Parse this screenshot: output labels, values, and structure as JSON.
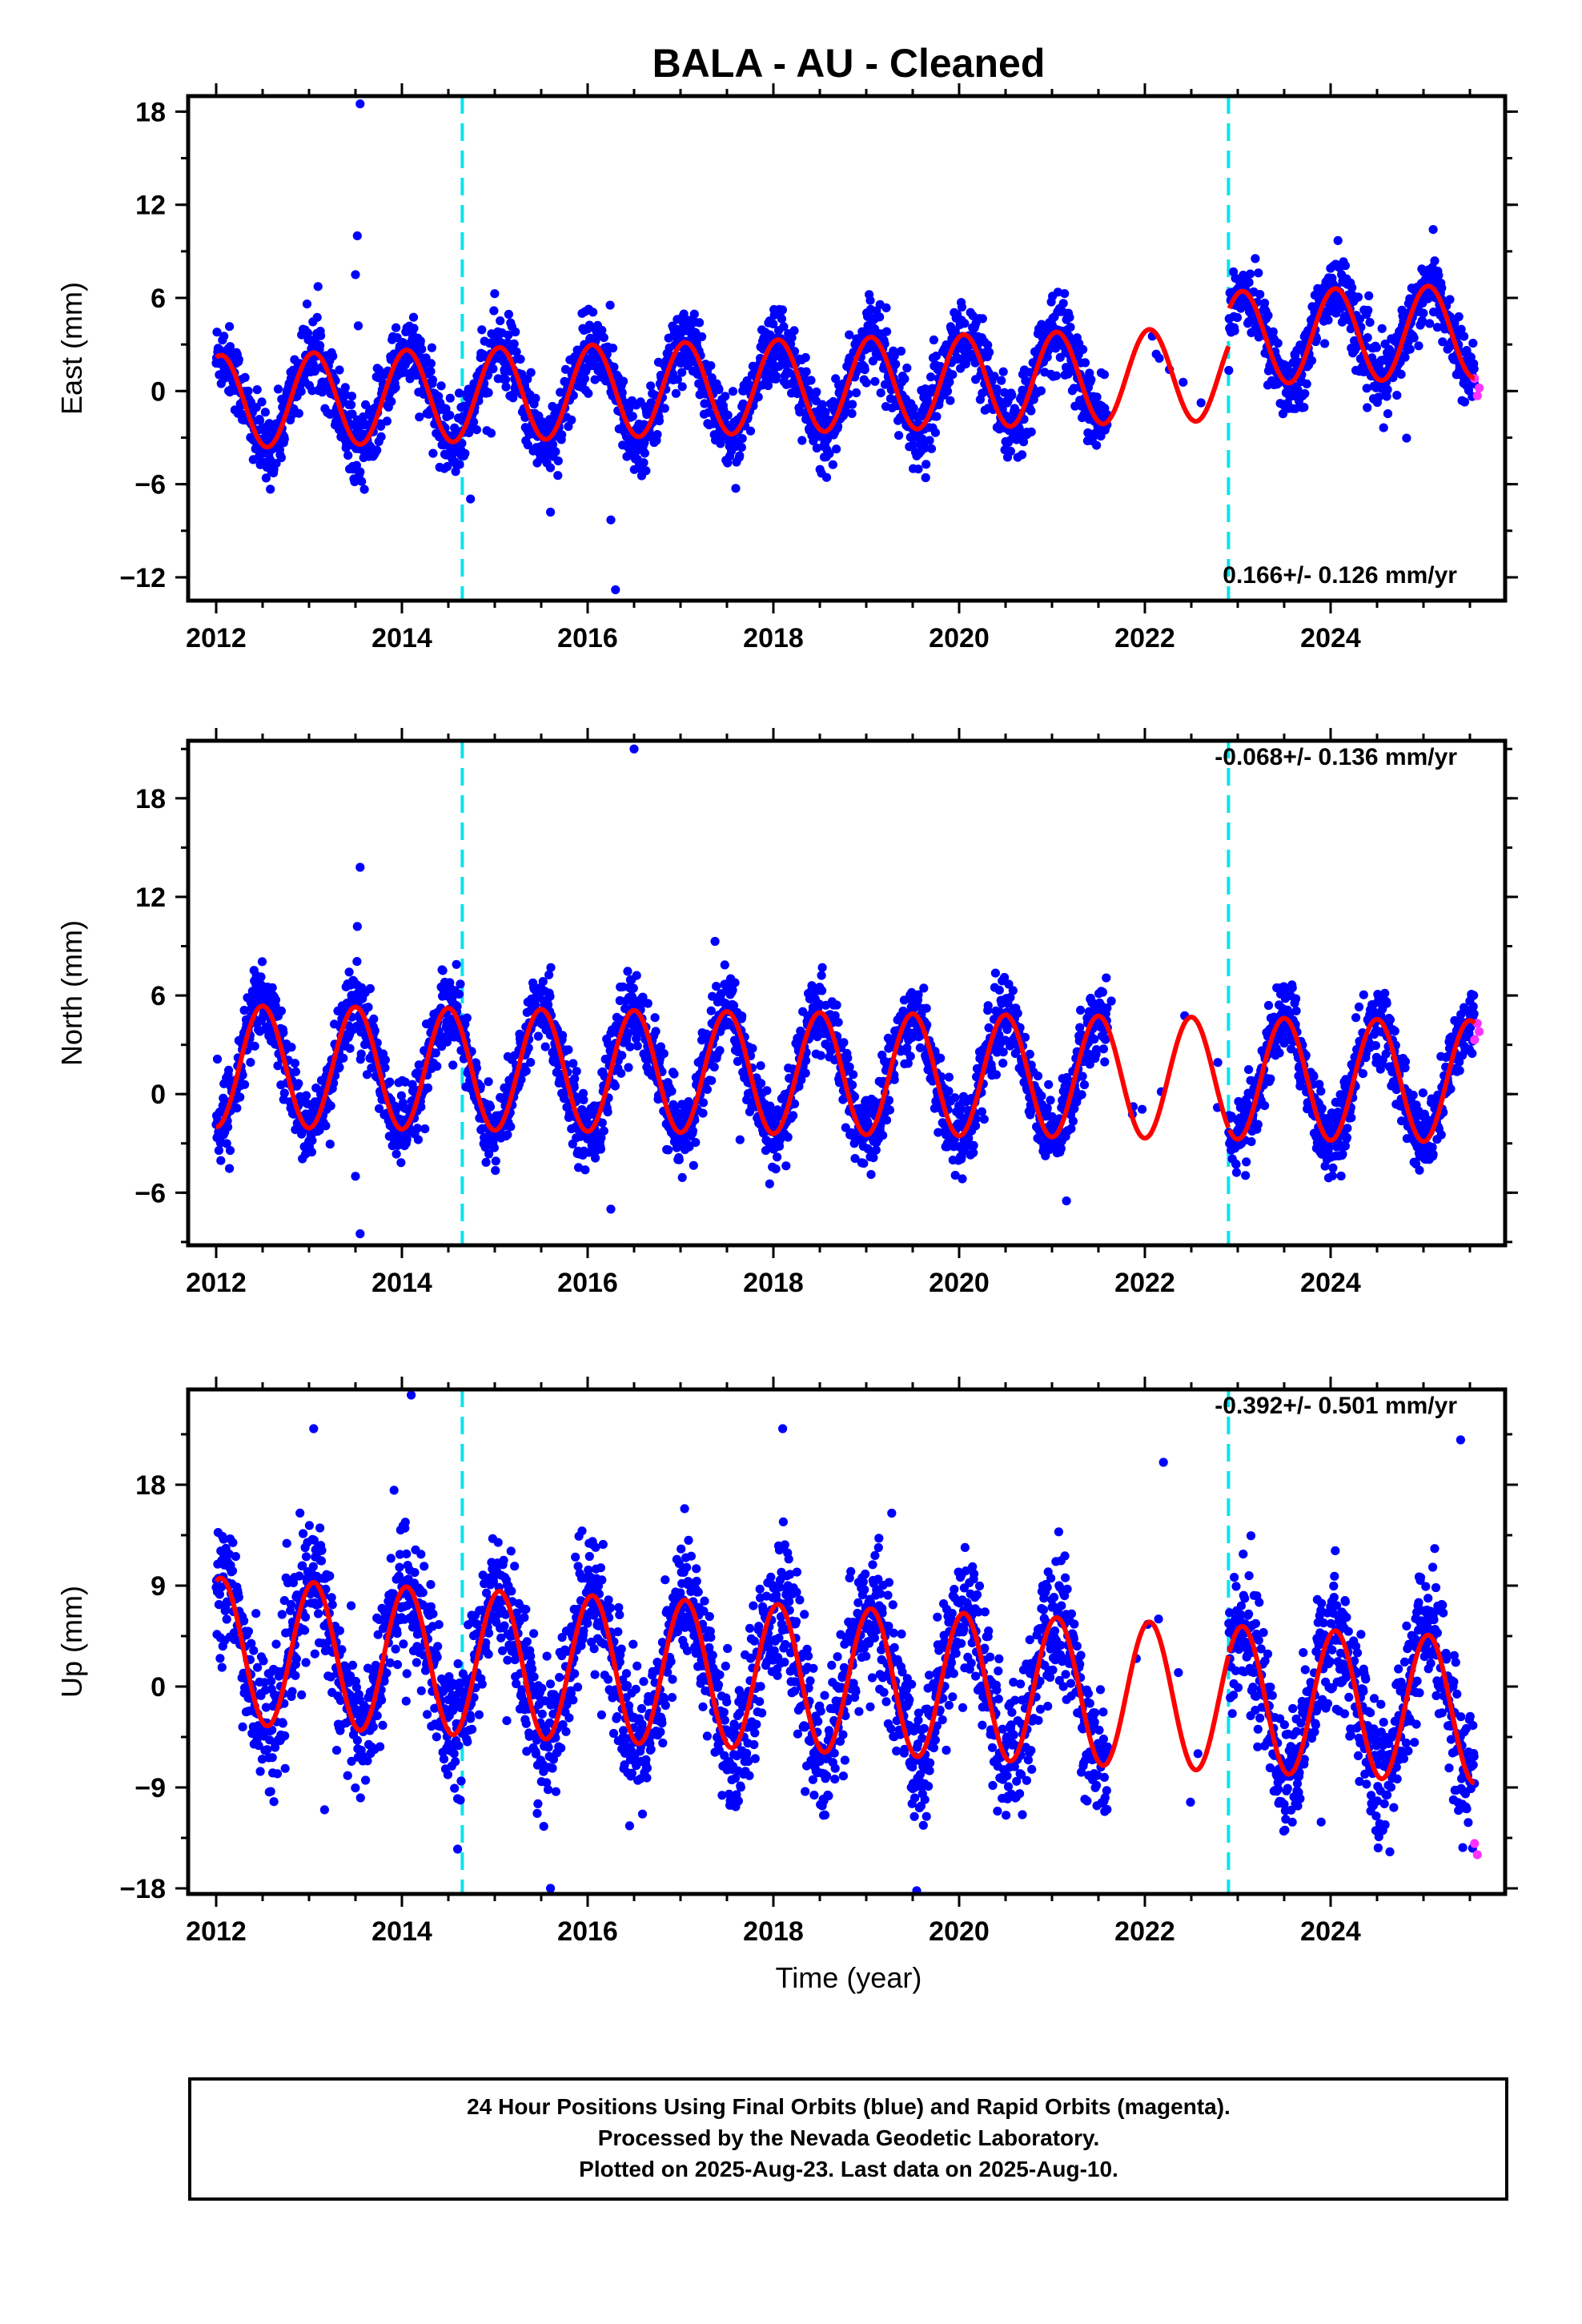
{
  "title": "BALA  - AU - Cleaned",
  "footer": {
    "line1": "24 Hour Positions Using Final Orbits (blue) and Rapid Orbits (magenta).",
    "line2": "Processed by the Nevada Geodetic Laboratory.",
    "line3": "Plotted on 2025-Aug-23. Last data on 2025-Aug-10."
  },
  "colors": {
    "final_points": "#0000ff",
    "rapid_points": "#ff33ff",
    "model": "#ff0000",
    "breaks": "#00e5ee"
  },
  "chart_data": [
    {
      "type": "scatter",
      "ylabel": "East (mm)",
      "xlabel": "",
      "rate": "0.166+/- 0.126 mm/yr",
      "xlim": [
        2011.75,
        2025.82
      ],
      "ylim": [
        -13.5,
        19
      ],
      "yticks": [
        -12,
        -6,
        0,
        6,
        12,
        18
      ],
      "xticks": [
        2012,
        2014,
        2016,
        2018,
        2020,
        2022,
        2024
      ],
      "equipment_breaks": [
        2014.65,
        2022.9
      ],
      "gap": [
        2021.6,
        2022.9
      ],
      "model": {
        "offset": -0.7,
        "trend": 0.166,
        "step_at_2022_9": 2.3,
        "annual_amp": 3.0,
        "annual_peak": 2012.05
      },
      "rapid_points_tail": {
        "x": [
          2025.55,
          2025.58,
          2025.6
        ],
        "y": [
          0.8,
          -0.3,
          0.2
        ]
      },
      "outliers": {
        "x": [
          2013.55,
          2013.52,
          2013.5,
          2013.53,
          2016.25,
          2016.3,
          2015.6
        ],
        "y": [
          18.5,
          10.0,
          7.5,
          4.2,
          -8.3,
          -12.8,
          -7.8
        ]
      }
    },
    {
      "type": "scatter",
      "ylabel": "North (mm)",
      "xlabel": "",
      "rate": "-0.068+/- 0.136 mm/yr",
      "xlim": [
        2011.75,
        2025.82
      ],
      "ylim": [
        -9.2,
        21.5
      ],
      "yticks": [
        -6,
        0,
        6,
        12,
        18
      ],
      "xticks": [
        2012,
        2014,
        2016,
        2018,
        2020,
        2022,
        2024
      ],
      "equipment_breaks": [
        2014.65,
        2022.9
      ],
      "gap": [
        2021.6,
        2022.9
      ],
      "model": {
        "offset": 1.7,
        "trend": -0.068,
        "step_at_2022_9": 0.0,
        "annual_amp": 3.7,
        "annual_peak": 2012.5
      },
      "rapid_points_tail": {
        "x": [
          2025.55,
          2025.58,
          2025.6
        ],
        "y": [
          3.3,
          4.3,
          3.8
        ]
      },
      "outliers": {
        "x": [
          2016.5,
          2013.55,
          2013.52,
          2013.5,
          2016.25,
          2013.55
        ],
        "y": [
          21.0,
          13.8,
          10.2,
          -5.0,
          -7.0,
          -8.5
        ]
      }
    },
    {
      "type": "scatter",
      "ylabel": "Up (mm)",
      "xlabel": "Time (year)",
      "rate": "-0.392+/- 0.501 mm/yr",
      "xlim": [
        2011.75,
        2025.82
      ],
      "ylim": [
        -18.5,
        26.5
      ],
      "yticks": [
        -18,
        -9,
        0,
        9,
        18
      ],
      "xticks": [
        2012,
        2014,
        2016,
        2018,
        2020,
        2022,
        2024
      ],
      "equipment_breaks": [
        2014.65,
        2022.9
      ],
      "gap": [
        2021.6,
        2022.9
      ],
      "model": {
        "offset": 3.2,
        "trend": -0.392,
        "step_at_2022_9": 0.0,
        "annual_amp": 6.5,
        "annual_peak": 2013.05
      },
      "rapid_points_tail": {
        "x": [
          2025.55,
          2025.58
        ],
        "y": [
          -14.0,
          -15.0
        ]
      },
      "outliers": {
        "x": [
          2014.1,
          2013.05,
          2018.1,
          2022.2,
          2025.4,
          2015.6,
          2014.6
        ],
        "y": [
          26.0,
          23.0,
          23.0,
          20.0,
          22.0,
          -18.0,
          -14.5
        ]
      }
    }
  ]
}
